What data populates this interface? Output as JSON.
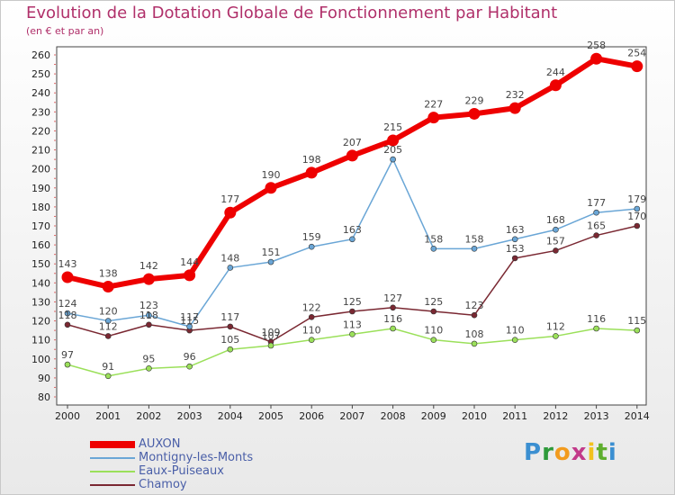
{
  "chart_data": {
    "type": "line",
    "title": "Evolution de la Dotation Globale de Fonctionnement par Habitant",
    "subtitle": "(en € et par an)",
    "xlabel": "",
    "ylabel": "",
    "categories": [
      "2000",
      "2001",
      "2002",
      "2003",
      "2004",
      "2005",
      "2006",
      "2007",
      "2008",
      "2009",
      "2010",
      "2011",
      "2012",
      "2013",
      "2014"
    ],
    "ylim": [
      80,
      260
    ],
    "yticks": [
      80,
      90,
      100,
      110,
      120,
      130,
      140,
      150,
      160,
      170,
      180,
      190,
      200,
      210,
      220,
      230,
      240,
      250,
      260
    ],
    "grid": false,
    "legend_position": "bottom-left",
    "series": [
      {
        "name": "AUXON",
        "color": "#ee0000",
        "emphasis": true,
        "values": [
          143,
          138,
          142,
          144,
          177,
          190,
          198,
          207,
          215,
          227,
          229,
          232,
          244,
          258,
          254
        ],
        "labels": [
          "143",
          "138",
          "142",
          "144",
          "177",
          "190",
          "198",
          "207",
          "215",
          "227",
          "229",
          "232",
          "244",
          "258",
          "254"
        ]
      },
      {
        "name": "Montigny-les-Monts",
        "color": "#6aa6d6",
        "emphasis": false,
        "values": [
          124,
          120,
          123,
          117,
          148,
          151,
          159,
          163,
          205,
          158,
          158,
          163,
          168,
          177,
          179
        ],
        "labels": [
          "124",
          "120",
          "123",
          "117",
          "148",
          "151",
          "159",
          "163",
          "205",
          "158",
          "158",
          "163",
          "168",
          "177",
          "179"
        ]
      },
      {
        "name": "Eaux-Puiseaux",
        "color": "#9be05a",
        "emphasis": false,
        "values": [
          97,
          91,
          95,
          96,
          105,
          107,
          110,
          113,
          116,
          110,
          108,
          110,
          112,
          116,
          115
        ],
        "labels": [
          "97",
          "91",
          "95",
          "96",
          "105",
          "107",
          "110",
          "113",
          "116",
          "110",
          "108",
          "110",
          "112",
          "116",
          "115"
        ]
      },
      {
        "name": "Chamoy",
        "color": "#7a2832",
        "emphasis": false,
        "values": [
          118,
          112,
          118,
          115,
          117,
          109,
          122,
          125,
          127,
          125,
          123,
          153,
          157,
          165,
          170
        ],
        "labels": [
          "118",
          "112",
          "118",
          "115",
          "117",
          "109",
          "122",
          "125",
          "127",
          "125",
          "123",
          "153",
          "157",
          "165",
          "170"
        ]
      }
    ]
  },
  "brand": {
    "letters": [
      "P",
      "r",
      "o",
      "x",
      "i",
      "t",
      "i"
    ]
  }
}
